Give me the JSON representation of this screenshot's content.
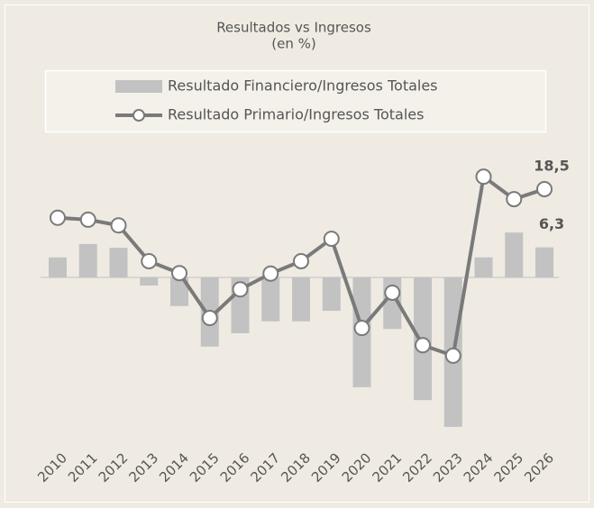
{
  "chart_data": {
    "type": "combo",
    "title": "Resultados vs Ingresos",
    "subtitle": "(en %)",
    "categories": [
      "2010",
      "2011",
      "2012",
      "2013",
      "2014",
      "2015",
      "2016",
      "2017",
      "2018",
      "2019",
      "2020",
      "2021",
      "2022",
      "2023",
      "2024",
      "2025",
      "2026"
    ],
    "ylim": [
      -35,
      25
    ],
    "series": [
      {
        "name": "Resultado Financiero/Ingresos Totales",
        "type": "bar",
        "color": "#c2c2c2",
        "values": [
          4.2,
          7.0,
          6.2,
          -1.7,
          -6.0,
          -14.5,
          -11.7,
          -9.2,
          -9.2,
          -7.0,
          -23.0,
          -10.8,
          -25.7,
          -31.3,
          4.2,
          9.4,
          6.3
        ],
        "value_labels": [
          null,
          null,
          null,
          null,
          null,
          null,
          null,
          null,
          null,
          null,
          null,
          null,
          null,
          null,
          null,
          null,
          "6,3"
        ]
      },
      {
        "name": "Resultado Primario/Ingresos Totales",
        "type": "line",
        "color": "#7a7a7a",
        "values": [
          12.5,
          12.1,
          10.9,
          3.4,
          0.9,
          -8.5,
          -2.5,
          0.8,
          3.4,
          8.1,
          -10.6,
          -3.2,
          -14.2,
          -16.4,
          21.1,
          16.4,
          18.5
        ],
        "value_labels": [
          null,
          null,
          null,
          null,
          null,
          null,
          null,
          null,
          null,
          null,
          null,
          null,
          null,
          null,
          null,
          null,
          "18,5"
        ]
      }
    ]
  }
}
